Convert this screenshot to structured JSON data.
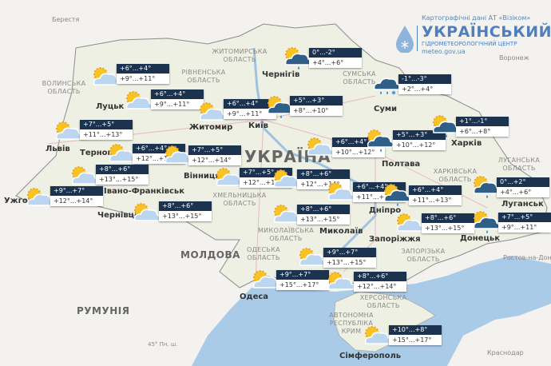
{
  "header": {
    "source": "Картографічні дані АТ «Візіком»",
    "title": "УКРАЇНСЬКИЙ",
    "subtitle": "ГІДРОМЕТЕОРОЛОГІЧНИЙ ЦЕНТР",
    "website": "meteo.gov.ua",
    "logo_icon": "water-drop-snowflake-icon"
  },
  "colors": {
    "land": "#eef0e3",
    "sea": "#a9cbe8",
    "box_header": "#1c3350",
    "brand": "#4f7fbf"
  },
  "country_label": "УКРАЇНА",
  "countries": [
    "МОЛДОВА",
    "РУМУНІЯ"
  ],
  "cities": [
    "Берестя",
    "Луцьк",
    "Львів",
    "Житомир",
    "Київ",
    "Чернігів",
    "Суми",
    "Полтава",
    "Харків",
    "Дніпро",
    "Запоріжжя",
    "Луганськ",
    "Донецьк",
    "Вінниця",
    "Тернопіль",
    "Івано-Франківськ",
    "Чернівці",
    "Ужгород",
    "Одеса",
    "Миколаїв",
    "Сімферополь",
    "Воронеж",
    "Ростов-на-Дону",
    "Краснодар"
  ],
  "regions": [
    "СУМСЬКА ОБЛАСТЬ",
    "ХАРКІВСЬКА ОБЛАСТЬ",
    "ЛУГАНСЬКА ОБЛАСТЬ",
    "ВОЛИНСЬКА ОБЛАСТЬ",
    "РІВНЕНСЬКА ОБЛАСТЬ",
    "ЖИТОМИРСЬКА ОБЛАСТЬ",
    "ХМЕЛЬНИЦЬКА ОБЛАСТЬ",
    "МИКОЛАЇВСЬКА ОБЛАСТЬ",
    "ОДЕСЬКА ОБЛАСТЬ",
    "ХЕРСОНСЬКА ОБЛАСТЬ",
    "ЗАПОРІЗЬКА ОБЛАСТЬ",
    "АВТОНОМНА РЕСПУБЛІКА КРИМ"
  ],
  "latitude_label": "45° Пн. ш.",
  "forecasts": [
    {
      "night": "+6°...+4°",
      "day": "+9°...+11°",
      "icon": "sun-cloud"
    },
    {
      "night": "+6°...+4°",
      "day": "+9°...+11°",
      "icon": "sun-cloud"
    },
    {
      "night": "+6°...+4°",
      "day": "+9°...+11°",
      "icon": "sun-cloud"
    },
    {
      "night": "+7°...+5°",
      "day": "+11°...+13°",
      "icon": "sun-cloud"
    },
    {
      "night": "+6°...+4°",
      "day": "+12°...+14°",
      "icon": "sun-cloud"
    },
    {
      "night": "+7°...+5°",
      "day": "+12°...+14°",
      "icon": "sun-cloud"
    },
    {
      "night": "+8°...+6°",
      "day": "+13°...+15°",
      "icon": "sun-cloud"
    },
    {
      "night": "+9°...+7°",
      "day": "+12°...+14°",
      "icon": "sun-cloud"
    },
    {
      "night": "+8°...+6°",
      "day": "+13°...+15°",
      "icon": "sun-cloud"
    },
    {
      "night": "+7°...+5°",
      "day": "+12°...+14°",
      "icon": "sun-cloud"
    },
    {
      "night": "0°...-2°",
      "day": "+4°...+6°",
      "icon": "sun-cloud-rain"
    },
    {
      "night": "+5°...+3°",
      "day": "+8°...+10°",
      "icon": "sun-cloud-rain"
    },
    {
      "night": "+6°...+4°",
      "day": "+10°...+12°",
      "icon": "sun-cloud"
    },
    {
      "night": "+8°...+6°",
      "day": "+12°...+14°",
      "icon": "sun-cloud"
    },
    {
      "night": "+6°...+4°",
      "day": "+11°...+13°",
      "icon": "sun-cloud"
    },
    {
      "night": "+8°...+6°",
      "day": "+13°...+15°",
      "icon": "sun-cloud"
    },
    {
      "night": "-1°...-3°",
      "day": "+2°...+4°",
      "icon": "cloud-rain-snow"
    },
    {
      "night": "+5°...+3°",
      "day": "+10°...+12°",
      "icon": "sun-cloud-rain"
    },
    {
      "night": "+1°...-1°",
      "day": "+6°...+8°",
      "icon": "sun-cloud-rain"
    },
    {
      "night": "+6°...+4°",
      "day": "+11°...+13°",
      "icon": "sun-cloud-rain"
    },
    {
      "night": "+8°...+6°",
      "day": "+13°...+15°",
      "icon": "sun-cloud"
    },
    {
      "night": "0°...+2°",
      "day": "+4°...+6°",
      "icon": "sun-cloud-rain"
    },
    {
      "night": "+7°...+5°",
      "day": "+9°...+11°",
      "icon": "sun-cloud-rain"
    },
    {
      "night": "+9°...+7°",
      "day": "+13°...+15°",
      "icon": "sun-cloud"
    },
    {
      "night": "+9°...+7°",
      "day": "+15°...+17°",
      "icon": "sun-cloud"
    },
    {
      "night": "+8°...+6°",
      "day": "+12°...+14°",
      "icon": "sun-cloud"
    },
    {
      "night": "+10°...+8°",
      "day": "+15°...+17°",
      "icon": "sun-cloud"
    }
  ]
}
